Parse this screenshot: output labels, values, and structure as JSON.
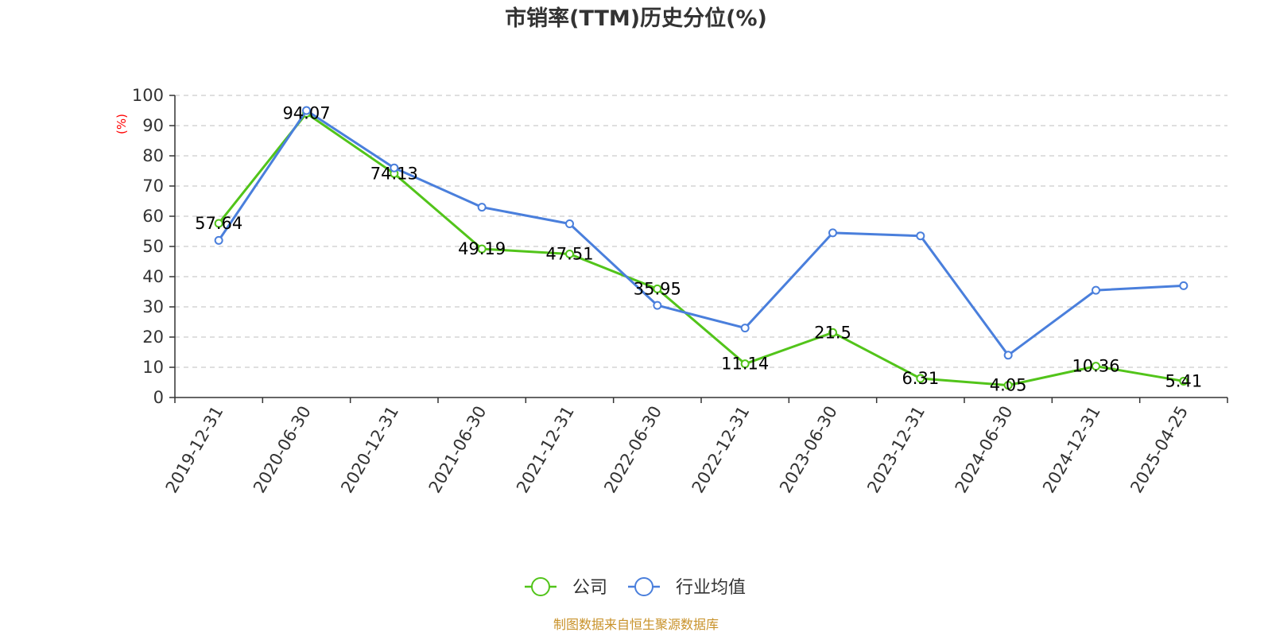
{
  "chart_data": {
    "type": "line",
    "title": "市销率(TTM)历史分位(%)",
    "ylabel": "(%)",
    "xlabel": "",
    "categories": [
      "2019-12-31",
      "2020-06-30",
      "2020-12-31",
      "2021-06-30",
      "2021-12-31",
      "2022-06-30",
      "2022-12-31",
      "2023-06-30",
      "2023-12-31",
      "2024-06-30",
      "2024-12-31",
      "2025-04-25"
    ],
    "y_ticks": [
      "0",
      "10",
      "20",
      "30",
      "40",
      "50",
      "60",
      "70",
      "80",
      "90",
      "100"
    ],
    "ylim": [
      0,
      100
    ],
    "grid": "horizontal dashed",
    "legend_position": "bottom",
    "series": [
      {
        "name": "公司",
        "color": "#52c41a",
        "values": [
          57.64,
          94.07,
          74.13,
          49.19,
          47.51,
          35.95,
          11.14,
          21.5,
          6.31,
          4.05,
          10.36,
          5.41
        ],
        "labels": [
          "57.64",
          "94.07",
          "74.13",
          "49.19",
          "47.51",
          "35.95",
          "11.14",
          "21.5",
          "6.31",
          "4.05",
          "10.36",
          "5.41"
        ]
      },
      {
        "name": "行业均值",
        "color": "#4a7fdc",
        "values": [
          52.0,
          95.0,
          76.0,
          63.0,
          57.5,
          30.5,
          23.0,
          54.5,
          53.5,
          14.0,
          35.5,
          37.0
        ]
      }
    ],
    "source": "制图数据来自恒生聚源数据库"
  }
}
